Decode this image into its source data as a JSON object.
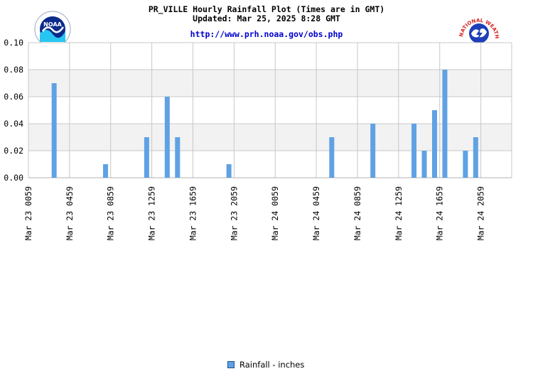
{
  "header": {
    "title": "PR_VILLE Hourly Rainfall Plot (Times are in GMT)",
    "updated": "Updated: Mar 25, 2025 8:28 GMT",
    "url": "http://www.prh.noaa.gov/obs.php"
  },
  "logos": {
    "left": "NOAA",
    "right_arc": "NATIONAL WEATHER SERVICE"
  },
  "colors": {
    "bar": "#5fa2e4",
    "band": "#f2f2f2",
    "grid": "#c8c8c8",
    "url": "#0000cc"
  },
  "chart_data": {
    "type": "bar",
    "ylim": [
      0,
      0.1
    ],
    "yticks": [
      "0.00",
      "0.02",
      "0.04",
      "0.06",
      "0.08",
      "0.10"
    ],
    "xticks": [
      "Mar 23 0059",
      "Mar 23 0459",
      "Mar 23 0859",
      "Mar 23 1259",
      "Mar 23 1659",
      "Mar 23 2059",
      "Mar 24 0059",
      "Mar 24 0459",
      "Mar 24 0859",
      "Mar 24 1259",
      "Mar 24 1659",
      "Mar 24 2059"
    ],
    "series": [
      {
        "name": "Rainfall - inches",
        "points": [
          {
            "time": "Mar 23 0259",
            "value": 0.07
          },
          {
            "time": "Mar 23 0759",
            "value": 0.01
          },
          {
            "time": "Mar 23 1159",
            "value": 0.03
          },
          {
            "time": "Mar 23 1359",
            "value": 0.06
          },
          {
            "time": "Mar 23 1459",
            "value": 0.03
          },
          {
            "time": "Mar 23 1959",
            "value": 0.01
          },
          {
            "time": "Mar 24 0559",
            "value": 0.03
          },
          {
            "time": "Mar 24 0959",
            "value": 0.04
          },
          {
            "time": "Mar 24 1359",
            "value": 0.04
          },
          {
            "time": "Mar 24 1459",
            "value": 0.02
          },
          {
            "time": "Mar 24 1559",
            "value": 0.05
          },
          {
            "time": "Mar 24 1659",
            "value": 0.08
          },
          {
            "time": "Mar 24 1859",
            "value": 0.02
          },
          {
            "time": "Mar 24 1959",
            "value": 0.03
          }
        ]
      }
    ]
  }
}
